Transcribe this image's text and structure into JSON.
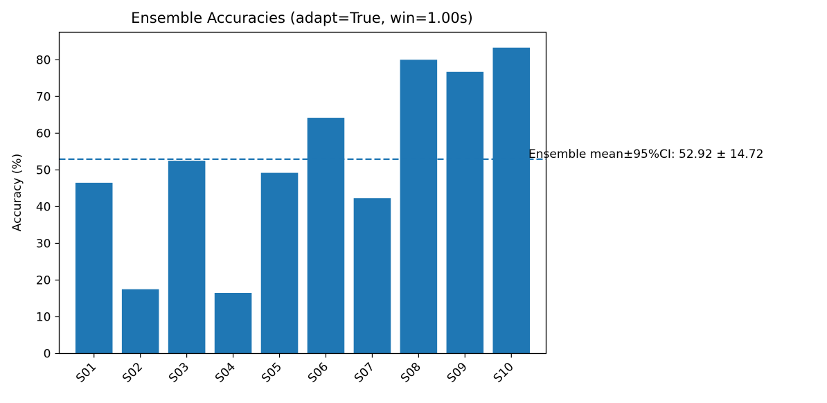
{
  "chart_data": {
    "type": "bar",
    "title": "Ensemble Accuracies (adapt=True, win=1.00s)",
    "xlabel": "",
    "ylabel": "Accuracy (%)",
    "categories": [
      "S01",
      "S02",
      "S03",
      "S04",
      "S05",
      "S06",
      "S07",
      "S08",
      "S09",
      "S10"
    ],
    "values": [
      46.5,
      17.5,
      52.5,
      16.5,
      49.2,
      64.2,
      42.3,
      80.0,
      76.7,
      83.3
    ],
    "ylim": [
      0,
      87.5
    ],
    "yticks": [
      0,
      10,
      20,
      30,
      40,
      50,
      60,
      70,
      80
    ],
    "mean_line": {
      "value": 52.92,
      "style": "dashed",
      "label": "Ensemble mean±95%CI: 52.92 ± 14.72"
    },
    "colors": {
      "bar": "#1f77b4",
      "mean_line": "#1f77b4"
    },
    "grid": false,
    "legend": "none"
  }
}
